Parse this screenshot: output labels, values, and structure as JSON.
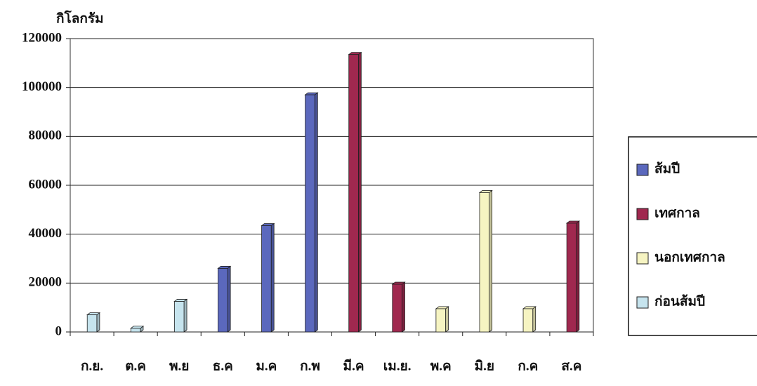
{
  "chart_data": {
    "type": "bar",
    "y_label": "กิโลกรัม",
    "categories": [
      "ก.ย.",
      "ต.ค",
      "พ.ย",
      "ธ.ค",
      "ม.ค",
      "ก.พ",
      "มี.ค",
      "เม.ย.",
      "พ.ค",
      "มิ.ย",
      "ก.ค",
      "ส.ค"
    ],
    "series": [
      {
        "name": "ส้มปี",
        "color": "#5b68bd",
        "values": [
          null,
          null,
          null,
          26000,
          43500,
          97000,
          null,
          null,
          null,
          null,
          null,
          null
        ]
      },
      {
        "name": "เทศกาล",
        "color": "#a0284f",
        "values": [
          null,
          null,
          null,
          null,
          null,
          null,
          113500,
          19500,
          null,
          null,
          null,
          44500
        ]
      },
      {
        "name": "นอกเทศกาล",
        "color": "#f6f4c2",
        "values": [
          null,
          null,
          null,
          null,
          null,
          null,
          null,
          null,
          9500,
          57000,
          9500,
          null
        ]
      },
      {
        "name": "ก่อนส้มปี",
        "color": "#c6e4ee",
        "values": [
          7000,
          1500,
          12500,
          null,
          null,
          null,
          null,
          null,
          null,
          null,
          null,
          null
        ]
      }
    ],
    "ylim": [
      0,
      120000
    ],
    "yticks": [
      0,
      20000,
      40000,
      60000,
      80000,
      100000,
      120000
    ],
    "grid": true
  }
}
